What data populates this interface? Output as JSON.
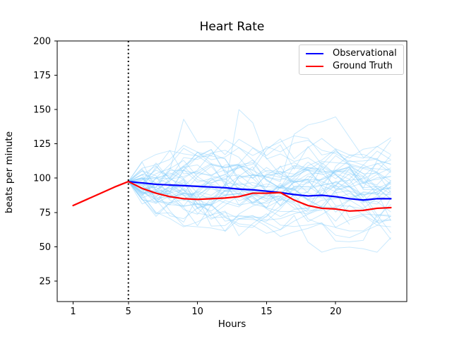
{
  "chart_data": {
    "type": "line",
    "title": "Heart Rate",
    "xlabel": "Hours",
    "ylabel": "beats per minute",
    "xlim": [
      -0.15,
      25.15
    ],
    "ylim": [
      10,
      200
    ],
    "xticks": [
      1,
      5,
      10,
      15,
      20
    ],
    "yticks": [
      25,
      50,
      75,
      100,
      125,
      150,
      175,
      200
    ],
    "grid": false,
    "frame": true,
    "legend": {
      "position": "upper right",
      "entries": [
        {
          "label": "Observational",
          "color": "#0000ff"
        },
        {
          "label": "Ground Truth",
          "color": "#ff0000"
        }
      ]
    },
    "vline": {
      "x": 5,
      "style": "dotted",
      "color": "#000000",
      "width": 2
    },
    "series": [
      {
        "name": "Observational",
        "color": "#0000ff",
        "width": 2.2,
        "x": [
          5,
          6,
          7,
          8,
          9,
          10,
          11,
          12,
          13,
          14,
          15,
          16,
          17,
          18,
          19,
          20,
          21,
          22,
          23,
          24
        ],
        "y": [
          97.5,
          96.5,
          95.5,
          95,
          94.5,
          94,
          93.5,
          93,
          92,
          91.5,
          90.5,
          89.5,
          88,
          87,
          87.5,
          86.5,
          85,
          84,
          85,
          85
        ]
      },
      {
        "name": "Ground Truth",
        "color": "#ff0000",
        "width": 2.2,
        "x": [
          1,
          2,
          3,
          4,
          5,
          6,
          7,
          8,
          9,
          10,
          11,
          12,
          13,
          14,
          15,
          16,
          17,
          18,
          19,
          20,
          21,
          22,
          23,
          24
        ],
        "y": [
          80,
          84.5,
          89,
          93.5,
          97.5,
          92.5,
          89,
          86.5,
          85,
          84.5,
          85,
          85.5,
          86.5,
          89,
          89,
          89.5,
          84,
          80,
          78,
          77.5,
          76,
          76.5,
          78,
          78.5
        ]
      }
    ],
    "samples": {
      "description": "ensemble of light-blue sampled heart-rate trajectories fanning out after hour 5",
      "color": "#87CEFA",
      "opacity": 0.45,
      "line_width": 1,
      "count": 48,
      "x_start": 5,
      "x_end": 24,
      "y_start": 97.5,
      "y_range": [
        46,
        152
      ],
      "step_sigma": 7.5,
      "attractor_range": [
        68,
        112
      ],
      "reversion": 0.2,
      "seed": 42,
      "forced_peaks": [
        {
          "line": 0,
          "hour": 13,
          "value": 150
        },
        {
          "line": 1,
          "hour": 9,
          "value": 143
        },
        {
          "line": 2,
          "hour": 17,
          "value": 132
        }
      ],
      "short_lines": [
        {
          "line": 5,
          "end_hour": 19
        },
        {
          "line": 13,
          "end_hour": 21
        },
        {
          "line": 29,
          "end_hour": 17
        }
      ]
    }
  }
}
